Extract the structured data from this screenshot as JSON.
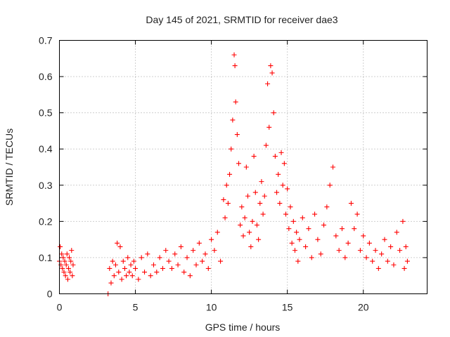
{
  "chart_data": {
    "type": "scatter",
    "title": "Day 145 of 2021, SRMTID for receiver dae3",
    "xlabel": "GPS time / hours",
    "ylabel": "SRMTID / TECUs",
    "xlim": [
      0,
      24.2
    ],
    "ylim": [
      0,
      0.7
    ],
    "x_ticks": [
      0,
      5,
      10,
      15,
      20
    ],
    "x_tick_labels": [
      "0",
      "5",
      "10",
      "15",
      "20"
    ],
    "y_ticks": [
      0,
      0.1,
      0.2,
      0.3,
      0.4,
      0.5,
      0.6,
      0.7
    ],
    "y_tick_labels": [
      "0",
      "0.1",
      "0.2",
      "0.3",
      "0.4",
      "0.5",
      "0.6",
      "0.7"
    ],
    "grid": true,
    "marker": "+",
    "series": [
      {
        "name": "SRMTID",
        "color": "#ff0000",
        "points": [
          [
            0.0,
            0.09
          ],
          [
            0.05,
            0.13
          ],
          [
            0.1,
            0.08
          ],
          [
            0.15,
            0.11
          ],
          [
            0.2,
            0.07
          ],
          [
            0.25,
            0.1
          ],
          [
            0.3,
            0.06
          ],
          [
            0.35,
            0.09
          ],
          [
            0.4,
            0.05
          ],
          [
            0.45,
            0.08
          ],
          [
            0.5,
            0.11
          ],
          [
            0.55,
            0.04
          ],
          [
            0.6,
            0.07
          ],
          [
            0.65,
            0.1
          ],
          [
            0.7,
            0.06
          ],
          [
            0.75,
            0.09
          ],
          [
            0.8,
            0.12
          ],
          [
            0.85,
            0.05
          ],
          [
            0.9,
            0.08
          ],
          [
            3.2,
            0.0
          ],
          [
            3.3,
            0.07
          ],
          [
            3.4,
            0.03
          ],
          [
            3.5,
            0.09
          ],
          [
            3.6,
            0.05
          ],
          [
            3.7,
            0.08
          ],
          [
            3.8,
            0.14
          ],
          [
            3.9,
            0.06
          ],
          [
            4.0,
            0.13
          ],
          [
            4.1,
            0.04
          ],
          [
            4.2,
            0.09
          ],
          [
            4.3,
            0.07
          ],
          [
            4.4,
            0.05
          ],
          [
            4.5,
            0.1
          ],
          [
            4.6,
            0.06
          ],
          [
            4.7,
            0.08
          ],
          [
            4.8,
            0.05
          ],
          [
            4.9,
            0.09
          ],
          [
            5.0,
            0.07
          ],
          [
            5.2,
            0.04
          ],
          [
            5.4,
            0.1
          ],
          [
            5.6,
            0.06
          ],
          [
            5.8,
            0.11
          ],
          [
            6.0,
            0.05
          ],
          [
            6.2,
            0.08
          ],
          [
            6.4,
            0.06
          ],
          [
            6.6,
            0.1
          ],
          [
            6.8,
            0.07
          ],
          [
            7.0,
            0.12
          ],
          [
            7.2,
            0.09
          ],
          [
            7.4,
            0.07
          ],
          [
            7.6,
            0.11
          ],
          [
            7.8,
            0.08
          ],
          [
            8.0,
            0.13
          ],
          [
            8.2,
            0.06
          ],
          [
            8.4,
            0.1
          ],
          [
            8.6,
            0.05
          ],
          [
            8.8,
            0.12
          ],
          [
            9.0,
            0.08
          ],
          [
            9.2,
            0.14
          ],
          [
            9.4,
            0.09
          ],
          [
            9.6,
            0.11
          ],
          [
            9.8,
            0.07
          ],
          [
            10.0,
            0.15
          ],
          [
            10.2,
            0.12
          ],
          [
            10.4,
            0.17
          ],
          [
            10.6,
            0.09
          ],
          [
            10.8,
            0.26
          ],
          [
            10.9,
            0.21
          ],
          [
            11.0,
            0.3
          ],
          [
            11.1,
            0.25
          ],
          [
            11.2,
            0.33
          ],
          [
            11.3,
            0.4
          ],
          [
            11.4,
            0.48
          ],
          [
            11.5,
            0.66
          ],
          [
            11.55,
            0.63
          ],
          [
            11.6,
            0.53
          ],
          [
            11.7,
            0.44
          ],
          [
            11.8,
            0.36
          ],
          [
            11.9,
            0.19
          ],
          [
            12.0,
            0.24
          ],
          [
            12.1,
            0.16
          ],
          [
            12.2,
            0.21
          ],
          [
            12.3,
            0.35
          ],
          [
            12.4,
            0.27
          ],
          [
            12.5,
            0.17
          ],
          [
            12.6,
            0.13
          ],
          [
            12.7,
            0.2
          ],
          [
            12.8,
            0.38
          ],
          [
            12.9,
            0.28
          ],
          [
            13.0,
            0.19
          ],
          [
            13.1,
            0.15
          ],
          [
            13.2,
            0.25
          ],
          [
            13.3,
            0.31
          ],
          [
            13.4,
            0.22
          ],
          [
            13.5,
            0.27
          ],
          [
            13.6,
            0.41
          ],
          [
            13.7,
            0.58
          ],
          [
            13.8,
            0.46
          ],
          [
            13.9,
            0.63
          ],
          [
            14.0,
            0.61
          ],
          [
            14.1,
            0.5
          ],
          [
            14.2,
            0.38
          ],
          [
            14.3,
            0.28
          ],
          [
            14.4,
            0.33
          ],
          [
            14.5,
            0.25
          ],
          [
            14.6,
            0.39
          ],
          [
            14.7,
            0.3
          ],
          [
            14.8,
            0.36
          ],
          [
            14.9,
            0.22
          ],
          [
            15.0,
            0.29
          ],
          [
            15.1,
            0.18
          ],
          [
            15.2,
            0.24
          ],
          [
            15.3,
            0.14
          ],
          [
            15.4,
            0.2
          ],
          [
            15.5,
            0.12
          ],
          [
            15.6,
            0.17
          ],
          [
            15.7,
            0.09
          ],
          [
            15.8,
            0.15
          ],
          [
            16.0,
            0.21
          ],
          [
            16.2,
            0.13
          ],
          [
            16.4,
            0.18
          ],
          [
            16.6,
            0.1
          ],
          [
            16.8,
            0.22
          ],
          [
            17.0,
            0.15
          ],
          [
            17.2,
            0.11
          ],
          [
            17.4,
            0.19
          ],
          [
            17.6,
            0.24
          ],
          [
            17.8,
            0.3
          ],
          [
            18.0,
            0.35
          ],
          [
            18.2,
            0.16
          ],
          [
            18.4,
            0.12
          ],
          [
            18.6,
            0.18
          ],
          [
            18.8,
            0.1
          ],
          [
            19.0,
            0.14
          ],
          [
            19.2,
            0.25
          ],
          [
            19.4,
            0.18
          ],
          [
            19.6,
            0.22
          ],
          [
            19.8,
            0.12
          ],
          [
            20.0,
            0.16
          ],
          [
            20.2,
            0.1
          ],
          [
            20.4,
            0.14
          ],
          [
            20.6,
            0.09
          ],
          [
            20.8,
            0.12
          ],
          [
            21.0,
            0.07
          ],
          [
            21.2,
            0.11
          ],
          [
            21.4,
            0.15
          ],
          [
            21.6,
            0.09
          ],
          [
            21.8,
            0.13
          ],
          [
            22.0,
            0.08
          ],
          [
            22.2,
            0.17
          ],
          [
            22.4,
            0.12
          ],
          [
            22.6,
            0.2
          ],
          [
            22.7,
            0.07
          ],
          [
            22.8,
            0.13
          ],
          [
            22.9,
            0.09
          ]
        ]
      }
    ]
  }
}
